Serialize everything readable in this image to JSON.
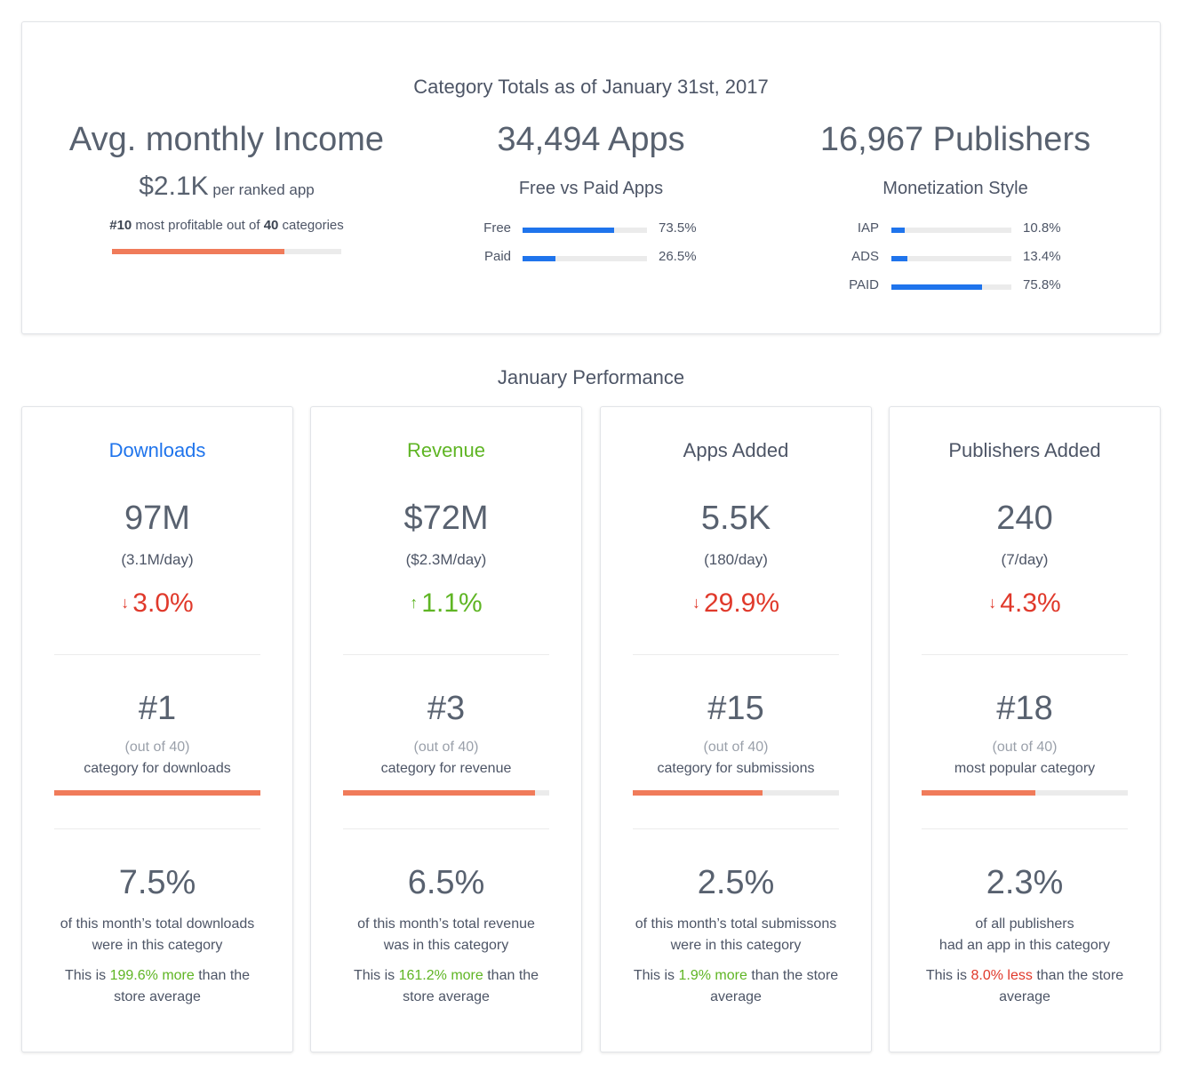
{
  "colors": {
    "downloads": "#1f74ec",
    "revenue": "#5fb524",
    "up": "#5fb524",
    "down": "#e0392b",
    "rank_bar": "#f07b5a",
    "hbar": "#1f74ec"
  },
  "totals": {
    "title": "Category Totals as of January 31st, 2017",
    "income": {
      "heading": "Avg. monthly Income",
      "value": "$2.1K",
      "suffix": " per ranked app",
      "rank_prefix": "#10",
      "rank_middle": " most profitable out of ",
      "rank_total": "40",
      "rank_suffix": " categories",
      "rank_fraction": 0.75
    },
    "apps": {
      "heading": "34,494 Apps",
      "subheading": "Free vs Paid Apps",
      "bars": [
        {
          "label": "Free",
          "value": "73.5%",
          "fraction": 0.735
        },
        {
          "label": "Paid",
          "value": "26.5%",
          "fraction": 0.265
        }
      ]
    },
    "publishers": {
      "heading": "16,967 Publishers",
      "subheading": "Monetization Style",
      "bars": [
        {
          "label": "IAP",
          "value": "10.8%",
          "fraction": 0.108
        },
        {
          "label": "ADS",
          "value": "13.4%",
          "fraction": 0.134
        },
        {
          "label": "PAID",
          "value": "75.8%",
          "fraction": 0.758
        }
      ]
    }
  },
  "performance": {
    "title": "January Performance",
    "cards": [
      {
        "title": "Downloads",
        "title_color": "#1f74ec",
        "big": "97M",
        "rate": "(3.1M/day)",
        "direction": "down",
        "arrow": "↓",
        "change": "3.0%",
        "rank": "#1",
        "out_of": "(out of 40)",
        "rank_desc": "category for downloads",
        "rank_fraction": 1.0,
        "pct": "7.5%",
        "desc_line1": "of this month’s total downloads",
        "desc_line2": "were in this category",
        "cmp_prefix": "This is ",
        "cmp_value": "199.6% more",
        "cmp_color": "green",
        "cmp_suffix": " than the store average"
      },
      {
        "title": "Revenue",
        "title_color": "#5fb524",
        "big": "$72M",
        "rate": "($2.3M/day)",
        "direction": "up",
        "arrow": "↑",
        "change": "1.1%",
        "rank": "#3",
        "out_of": "(out of 40)",
        "rank_desc": "category for revenue",
        "rank_fraction": 0.93,
        "pct": "6.5%",
        "desc_line1": "of this month’s total revenue",
        "desc_line2": "was in this category",
        "cmp_prefix": "This is ",
        "cmp_value": "161.2% more",
        "cmp_color": "green",
        "cmp_suffix": " than the store average"
      },
      {
        "title": "Apps Added",
        "title_color": "#4d5566",
        "big": "5.5K",
        "rate": "(180/day)",
        "direction": "down",
        "arrow": "↓",
        "change": "29.9%",
        "rank": "#15",
        "out_of": "(out of 40)",
        "rank_desc": "category for submissions",
        "rank_fraction": 0.63,
        "pct": "2.5%",
        "desc_line1": "of this month’s total submissons",
        "desc_line2": "were in this category",
        "cmp_prefix": "This is ",
        "cmp_value": "1.9% more",
        "cmp_color": "green",
        "cmp_suffix": " than the store average"
      },
      {
        "title": "Publishers Added",
        "title_color": "#4d5566",
        "big": "240",
        "rate": "(7/day)",
        "direction": "down",
        "arrow": "↓",
        "change": "4.3%",
        "rank": "#18",
        "out_of": "(out of 40)",
        "rank_desc": "most popular category",
        "rank_fraction": 0.55,
        "pct": "2.3%",
        "desc_line1": "of all publishers",
        "desc_line2": "had an app in this category",
        "cmp_prefix": "This is ",
        "cmp_value": "8.0% less",
        "cmp_color": "red",
        "cmp_suffix": " than the store average"
      }
    ]
  }
}
